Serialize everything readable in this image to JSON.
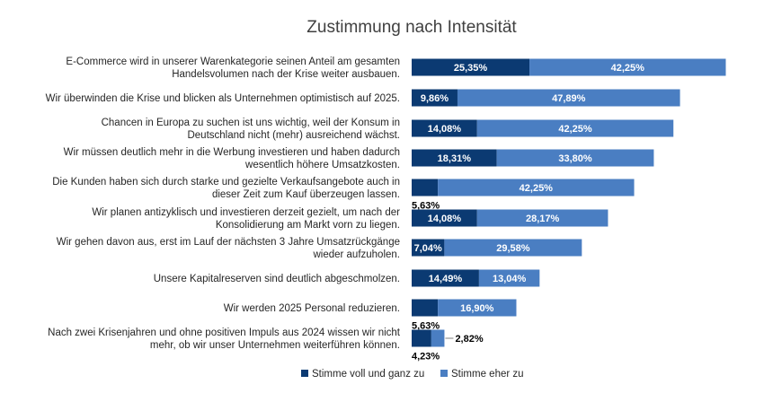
{
  "chart_data": {
    "type": "bar",
    "orientation": "horizontal",
    "stacked": true,
    "title": "Zustimmung nach Intensität",
    "categories": [
      [
        "E-Commerce wird in unserer Warenkategorie seinen Anteil am gesamten",
        "Handelsvolumen nach der Krise weiter ausbauen."
      ],
      [
        "Wir überwinden die Krise und blicken als Unternehmen optimistisch auf 2025."
      ],
      [
        "Chancen in Europa zu suchen ist uns wichtig, weil der Konsum in",
        "Deutschland nicht (mehr) ausreichend wächst."
      ],
      [
        "Wir müssen deutlich mehr in die Werbung investieren und haben dadurch",
        "wesentlich höhere Umsatzkosten."
      ],
      [
        "Die Kunden haben sich durch starke und gezielte Verkaufsangebote auch in",
        "dieser Zeit zum Kauf überzeugen lassen."
      ],
      [
        "Wir planen antizyklisch und investieren derzeit gezielt, um nach der",
        "Konsolidierung am Markt vorn zu liegen."
      ],
      [
        "Wir gehen davon aus, erst im Lauf der nächsten 3 Jahre Umsatzrückgänge",
        "wieder aufzuholen."
      ],
      [
        "Unsere Kapitalreserven sind deutlich abgeschmolzen."
      ],
      [
        "Wir werden 2025 Personal reduzieren."
      ],
      [
        "Nach zwei Krisenjahren und ohne positiven Impuls aus 2024 wissen wir nicht",
        "mehr, ob wir unser Unternehmen weiterführen können."
      ]
    ],
    "series": [
      {
        "name": "Stimme voll und ganz zu",
        "color": "#0b3a72",
        "values": [
          25.35,
          9.86,
          14.08,
          18.31,
          5.63,
          14.08,
          7.04,
          14.49,
          5.63,
          4.23
        ],
        "labels": [
          "25,35%",
          "9,86%",
          "14,08%",
          "18,31%",
          "5,63%",
          "14,08%",
          "7,04%",
          "14,49%",
          "5,63%",
          "4,23%"
        ]
      },
      {
        "name": "Stimme eher zu",
        "color": "#4a7ec2",
        "values": [
          42.25,
          47.89,
          42.25,
          33.8,
          42.25,
          28.17,
          29.58,
          13.04,
          16.9,
          2.82
        ],
        "labels": [
          "42,25%",
          "47,89%",
          "42,25%",
          "33,80%",
          "42,25%",
          "28,17%",
          "29,58%",
          "13,04%",
          "16,90%",
          "2,82%"
        ]
      }
    ],
    "legend_position": "bottom",
    "grid": false
  }
}
